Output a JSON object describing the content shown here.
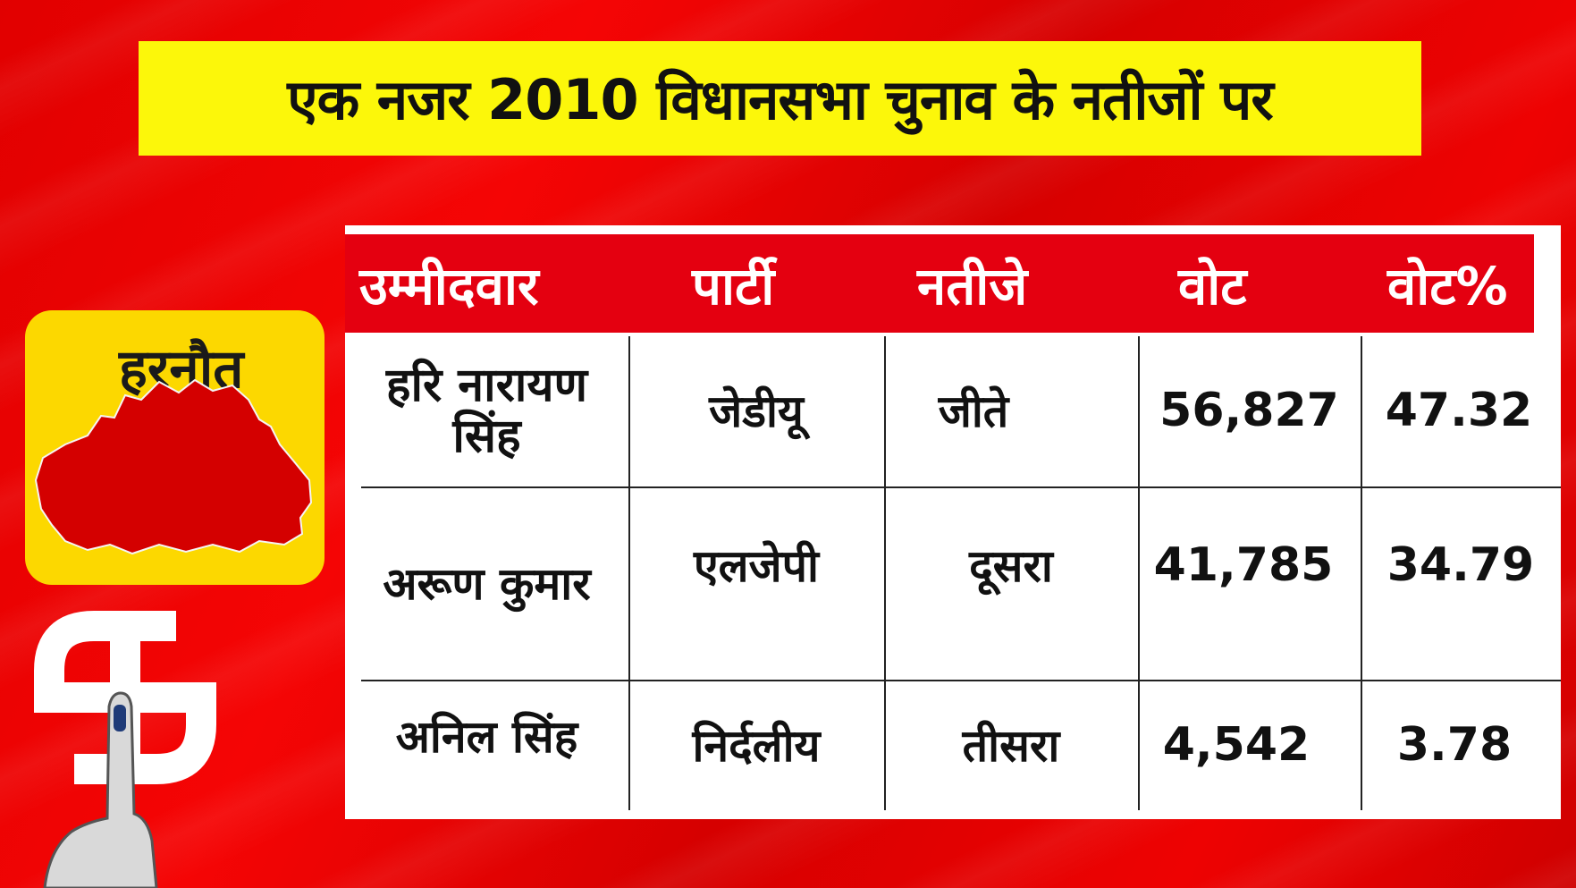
{
  "title": "एक नजर 2010 विधानसभा चुनाव के नतीजों पर",
  "constituency": {
    "name": "हरनौत",
    "map_icon": "constituency-map-silhouette",
    "symbol_icon": "election-symbol-with-inked-finger"
  },
  "table": {
    "headers": [
      "उम्मीदवार",
      "पार्टी",
      "नतीजे",
      "वोट",
      "वोट%"
    ],
    "rows": [
      {
        "candidate": "हरि नारायण सिंह",
        "party": "जेडीयू",
        "result": "जीते",
        "votes": "56,827",
        "vote_pct": "47.32"
      },
      {
        "candidate": "अरूण कुमार",
        "party": "एलजेपी",
        "result": "दूसरा",
        "votes": "41,785",
        "vote_pct": "34.79"
      },
      {
        "candidate": "अनिल सिंह",
        "party": "निर्दलीय",
        "result": "तीसरा",
        "votes": "4,542",
        "vote_pct": "3.78"
      }
    ]
  },
  "colors": {
    "background": "#e60000",
    "banner": "#fcf70a",
    "header_row": "#e40010",
    "constituency_card": "#fcd800",
    "map_fill": "#d40000"
  }
}
